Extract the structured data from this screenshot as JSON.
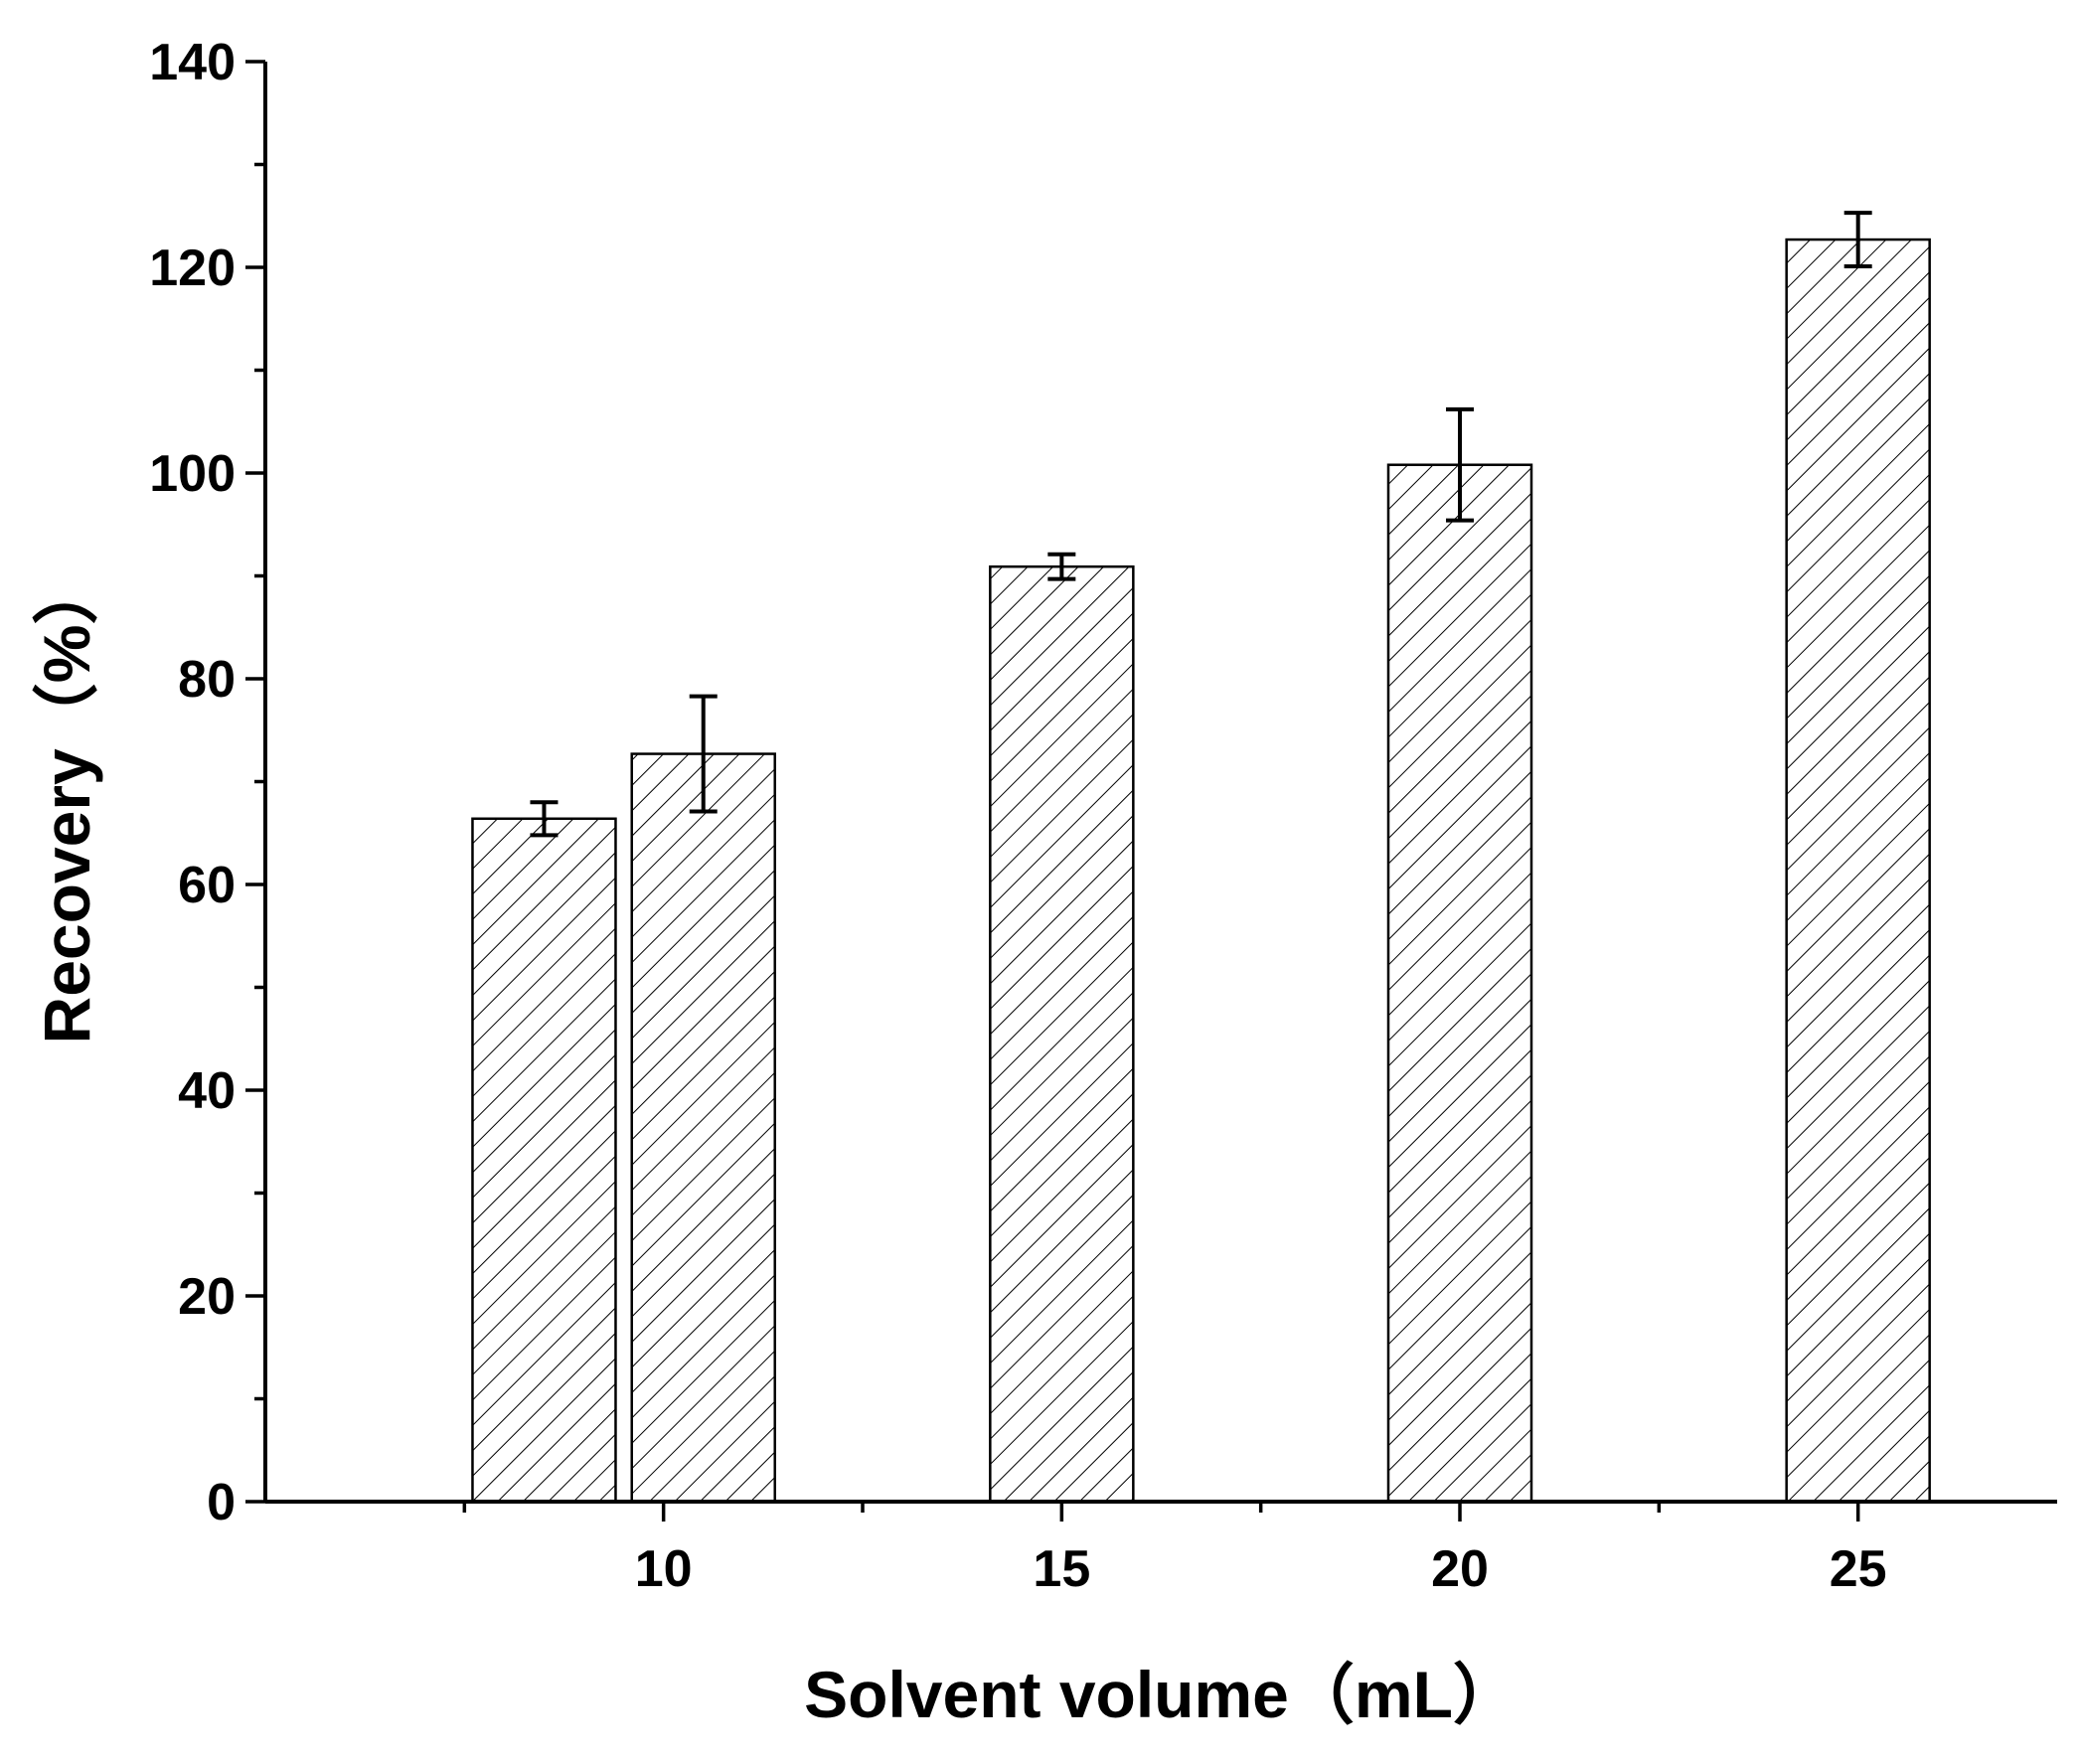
{
  "chart_data": {
    "type": "bar",
    "xlabel": "Solvent volume（mL）",
    "ylabel": "Recovery（%）",
    "xlim": [
      5,
      27.5
    ],
    "ylim": [
      0,
      140
    ],
    "x_ticks": [
      10,
      15,
      20,
      25
    ],
    "x_minor_ticks": [
      7.5,
      12.5,
      17.5,
      22.5
    ],
    "y_ticks": [
      0,
      20,
      40,
      60,
      80,
      100,
      120,
      140
    ],
    "y_minor_ticks": [
      10,
      30,
      50,
      70,
      90,
      110,
      130
    ],
    "bar_fill": "hatched diagonal",
    "bar_color": "#000000",
    "bars": [
      {
        "x": 8.5,
        "value": 66.4,
        "error": 1.6
      },
      {
        "x": 10.5,
        "value": 72.7,
        "error": 5.6
      },
      {
        "x": 15.0,
        "value": 90.9,
        "error": 1.2
      },
      {
        "x": 20.0,
        "value": 100.8,
        "error": 5.4
      },
      {
        "x": 25.0,
        "value": 122.7,
        "error": 2.6
      }
    ]
  }
}
